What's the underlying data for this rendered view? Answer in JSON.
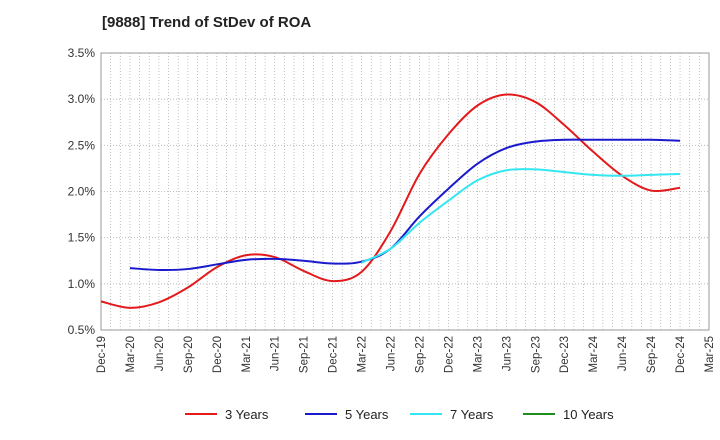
{
  "chart_data": {
    "type": "line",
    "title": "[9888]  Trend of StDev of ROA",
    "xlabel": "",
    "ylabel": "",
    "x": [
      "Dec-19",
      "Mar-20",
      "Jun-20",
      "Sep-20",
      "Dec-20",
      "Mar-21",
      "Jun-21",
      "Sep-21",
      "Dec-21",
      "Mar-22",
      "Jun-22",
      "Sep-22",
      "Dec-22",
      "Mar-23",
      "Jun-23",
      "Sep-23",
      "Dec-23",
      "Mar-24",
      "Jun-24",
      "Sep-24",
      "Dec-24",
      "Mar-25"
    ],
    "ylim": [
      0.5,
      3.5
    ],
    "yticks": [
      0.5,
      1.0,
      1.5,
      2.0,
      2.5,
      3.0,
      3.5
    ],
    "ytick_labels": [
      "0.5%",
      "1.0%",
      "1.5%",
      "2.0%",
      "2.5%",
      "3.0%",
      "3.5%"
    ],
    "grid": true,
    "legend_position": "bottom",
    "series": [
      {
        "name": "3 Years",
        "color": "#e31a1c",
        "values": [
          0.81,
          0.74,
          0.8,
          0.96,
          1.18,
          1.31,
          1.29,
          1.14,
          1.03,
          1.13,
          1.57,
          2.19,
          2.62,
          2.93,
          3.05,
          2.97,
          2.72,
          2.43,
          2.17,
          2.01,
          2.04,
          null
        ]
      },
      {
        "name": "5 Years",
        "color": "#1a1acd",
        "values": [
          null,
          1.17,
          1.15,
          1.16,
          1.21,
          1.26,
          1.27,
          1.25,
          1.22,
          1.24,
          1.38,
          1.73,
          2.03,
          2.3,
          2.47,
          2.54,
          2.56,
          2.56,
          2.56,
          2.56,
          2.55,
          null
        ]
      },
      {
        "name": "7 Years",
        "color": "#33e6f0",
        "values": [
          null,
          null,
          null,
          null,
          null,
          null,
          null,
          null,
          null,
          1.23,
          1.38,
          1.66,
          1.9,
          2.12,
          2.23,
          2.24,
          2.21,
          2.18,
          2.17,
          2.18,
          2.19,
          null
        ]
      },
      {
        "name": "10 Years",
        "color": "#1e8c1e",
        "values": [
          null,
          null,
          null,
          null,
          null,
          null,
          null,
          null,
          null,
          null,
          null,
          null,
          null,
          null,
          null,
          null,
          null,
          null,
          null,
          null,
          null,
          null
        ]
      }
    ]
  }
}
